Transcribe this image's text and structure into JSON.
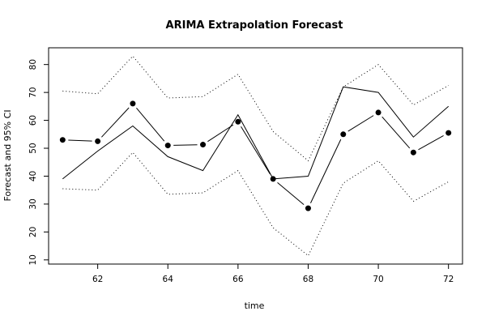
{
  "chart_data": {
    "type": "line",
    "title": "ARIMA Extrapolation Forecast",
    "xlabel": "time",
    "ylabel": "Forecast and 95% CI",
    "x": [
      61,
      62,
      63,
      64,
      65,
      66,
      67,
      68,
      69,
      70,
      71,
      72
    ],
    "xlim": [
      60.6,
      72.4
    ],
    "ylim": [
      8.5,
      86
    ],
    "x_ticks": [
      62,
      64,
      66,
      68,
      70,
      72
    ],
    "y_ticks": [
      10,
      20,
      30,
      40,
      50,
      60,
      70,
      80
    ],
    "grid": false,
    "series": [
      {
        "style": "solid",
        "values": [
          39,
          49,
          58,
          47,
          42,
          62,
          39,
          40,
          72,
          70,
          54,
          65
        ]
      },
      {
        "style": "points",
        "values": [
          53,
          52.5,
          66,
          51,
          51.3,
          59.5,
          39,
          28.5,
          55,
          62.8,
          48.5,
          55.5
        ]
      },
      {
        "style": "dotted",
        "values": [
          70.5,
          69.5,
          83,
          68,
          68.5,
          76.5,
          56,
          45.5,
          72,
          80,
          65.5,
          72.5
        ]
      },
      {
        "style": "dotted",
        "values": [
          35.5,
          35,
          48.5,
          33.5,
          34,
          42,
          21.5,
          11.5,
          37.5,
          45.5,
          31,
          38
        ]
      }
    ]
  }
}
